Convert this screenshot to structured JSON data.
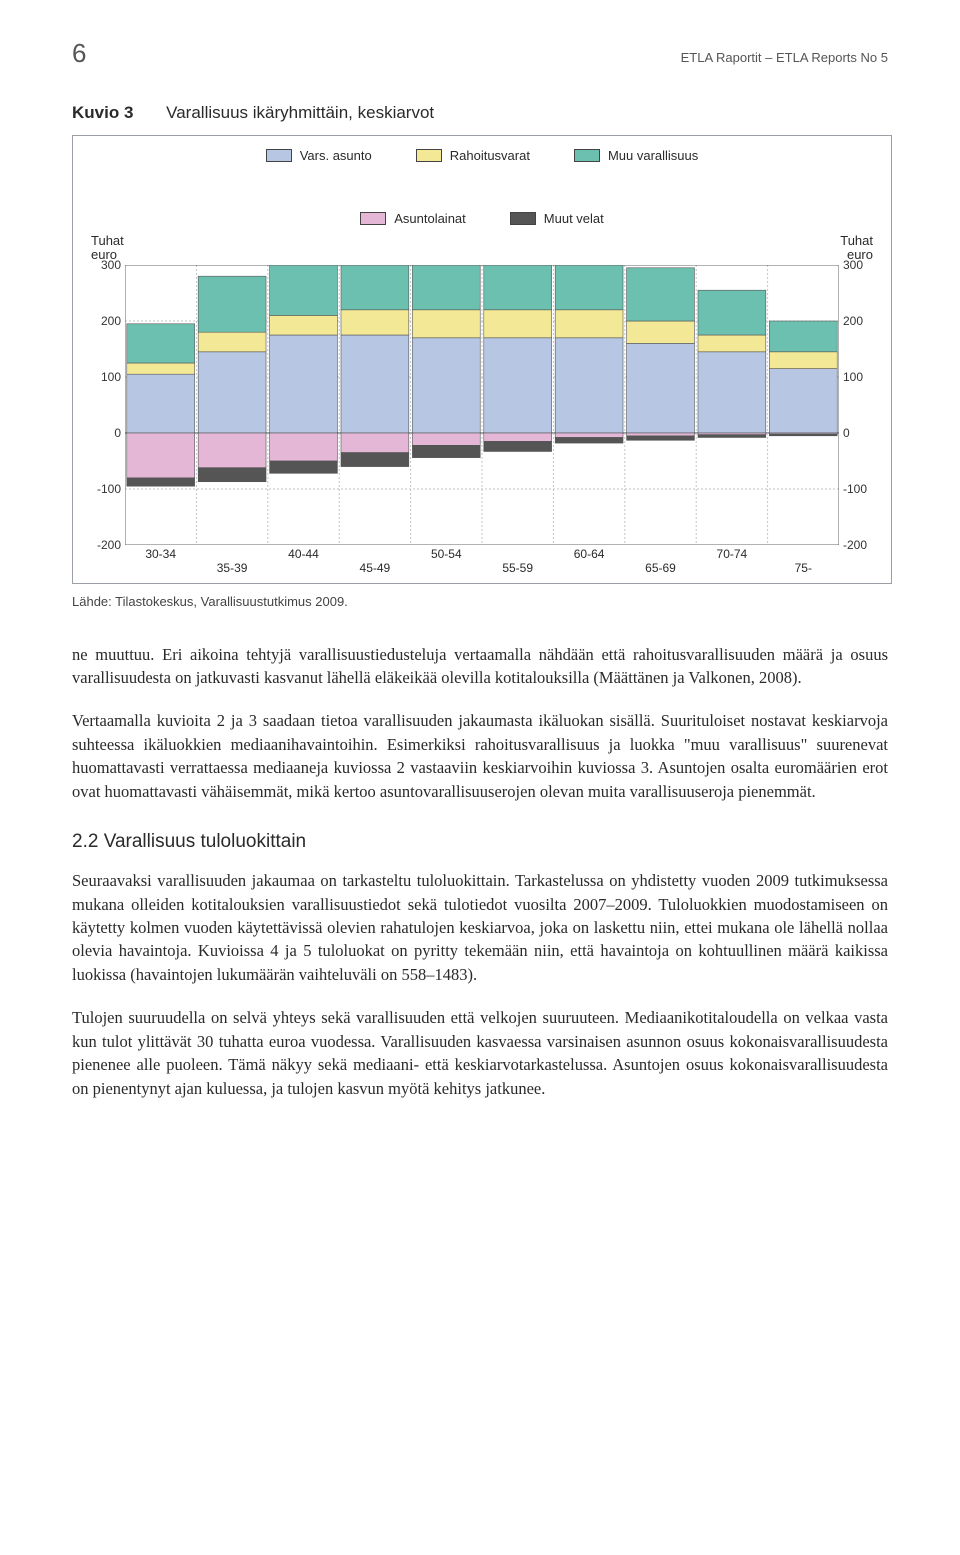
{
  "header": {
    "page_number": "6",
    "running_head": "ETLA Raportit – ETLA Reports   No 5"
  },
  "figure": {
    "label": "Kuvio 3",
    "caption": "Varallisuus ikäryhmittäin, keskiarvot",
    "y_axis_left": "Tuhat\neuro",
    "y_axis_right": "Tuhat\neuro",
    "source": "Lähde: Tilastokeskus, Varallisuustutkimus 2009.",
    "chart": {
      "type": "stacked-bar",
      "background_color": "#ffffff",
      "border_color": "#9aa0a6",
      "grid_color": "#bfc3c7",
      "grid_dash": "2,2",
      "categories_top": [
        "30-34",
        "40-44",
        "50-54",
        "60-64",
        "70-74"
      ],
      "categories_bottom": [
        "35-39",
        "45-49",
        "55-59",
        "65-69",
        "75-"
      ],
      "categories": [
        "30-34",
        "35-39",
        "40-44",
        "45-49",
        "50-54",
        "55-59",
        "60-64",
        "65-69",
        "70-74",
        "75-"
      ],
      "ylim": [
        -200,
        300
      ],
      "ytick_step": 100,
      "bar_width": 0.95,
      "series": [
        {
          "key": "vars_asunto",
          "label": "Vars. asunto",
          "color": "#b6c6e3"
        },
        {
          "key": "rahoitusvarat",
          "label": "Rahoitusvarat",
          "color": "#f3e895"
        },
        {
          "key": "muu_varall",
          "label": "Muu varallisuus",
          "color": "#6cc0b0"
        },
        {
          "key": "asuntolainat",
          "label": "Asuntolainat",
          "color": "#e5b7d6"
        },
        {
          "key": "muut_velat",
          "label": "Muut velat",
          "color": "#555555"
        }
      ],
      "values": {
        "vars_asunto": [
          105,
          145,
          175,
          175,
          170,
          170,
          170,
          160,
          145,
          115
        ],
        "rahoitusvarat": [
          20,
          35,
          35,
          45,
          50,
          50,
          50,
          40,
          30,
          30
        ],
        "muu_varall": [
          70,
          100,
          95,
          100,
          105,
          110,
          105,
          95,
          80,
          55
        ],
        "asuntolainat": [
          -80,
          -62,
          -50,
          -35,
          -22,
          -15,
          -8,
          -5,
          -3,
          -2
        ],
        "muut_velat": [
          -15,
          -25,
          -22,
          -25,
          -22,
          -18,
          -10,
          -8,
          -5,
          -3
        ]
      },
      "font_size_ticks": 12,
      "font_size_legend": 13
    }
  },
  "body": {
    "p1": "ne muuttuu. Eri aikoina tehtyjä varallisuustiedusteluja vertaamalla nähdään että rahoitusvarallisuuden määrä ja osuus varallisuudesta on jatkuvasti kasvanut lähellä eläkeikää olevilla kotitalouksilla (Määttänen ja Valkonen, 2008).",
    "p2": "Vertaamalla kuvioita 2 ja 3 saadaan tietoa varallisuuden jakaumasta ikäluokan sisällä. Suurituloiset nostavat keskiarvoja suhteessa ikäluokkien mediaanihavaintoihin. Esimerkiksi rahoitusvarallisuus ja luokka \"muu varallisuus\" suurenevat huomattavasti verrattaessa mediaaneja kuviossa 2 vastaaviin keskiarvoihin kuviossa 3. Asuntojen osalta euromäärien erot ovat huomattavasti vähäisemmät, mikä kertoo asuntovarallisuuserojen olevan muita varallisuuseroja pienemmät.",
    "h_2_2": "2.2 Varallisuus tuloluokittain",
    "p3": "Seuraavaksi varallisuuden jakaumaa on tarkasteltu tuloluokittain. Tarkastelussa on yhdistetty vuoden 2009 tutkimuksessa mukana olleiden kotitalouksien varallisuustiedot sekä tulotiedot vuosilta 2007–2009. Tuloluokkien muodostamiseen on käytetty kolmen vuoden käytettävissä olevien rahatulojen keskiarvoa, joka on laskettu niin, ettei mukana ole lähellä nollaa olevia havaintoja. Kuvioissa 4 ja 5 tuloluokat on pyritty tekemään niin, että havaintoja on kohtuullinen määrä kaikissa luokissa (havaintojen lukumäärän vaihteluväli on 558–1483).",
    "p4": "Tulojen suuruudella on selvä yhteys sekä varallisuuden että velkojen suuruuteen. Mediaanikotitaloudella on velkaa vasta kun tulot ylittävät 30 tuhatta euroa vuodessa. Varallisuuden kasvaessa varsinaisen asunnon osuus kokonaisvarallisuudesta pienenee alle puoleen. Tämä näkyy sekä mediaani- että keskiarvotarkastelussa. Asuntojen osuus kokonaisvarallisuudesta on pienentynyt ajan kuluessa, ja tulojen kasvun myötä kehitys jatkunee."
  }
}
